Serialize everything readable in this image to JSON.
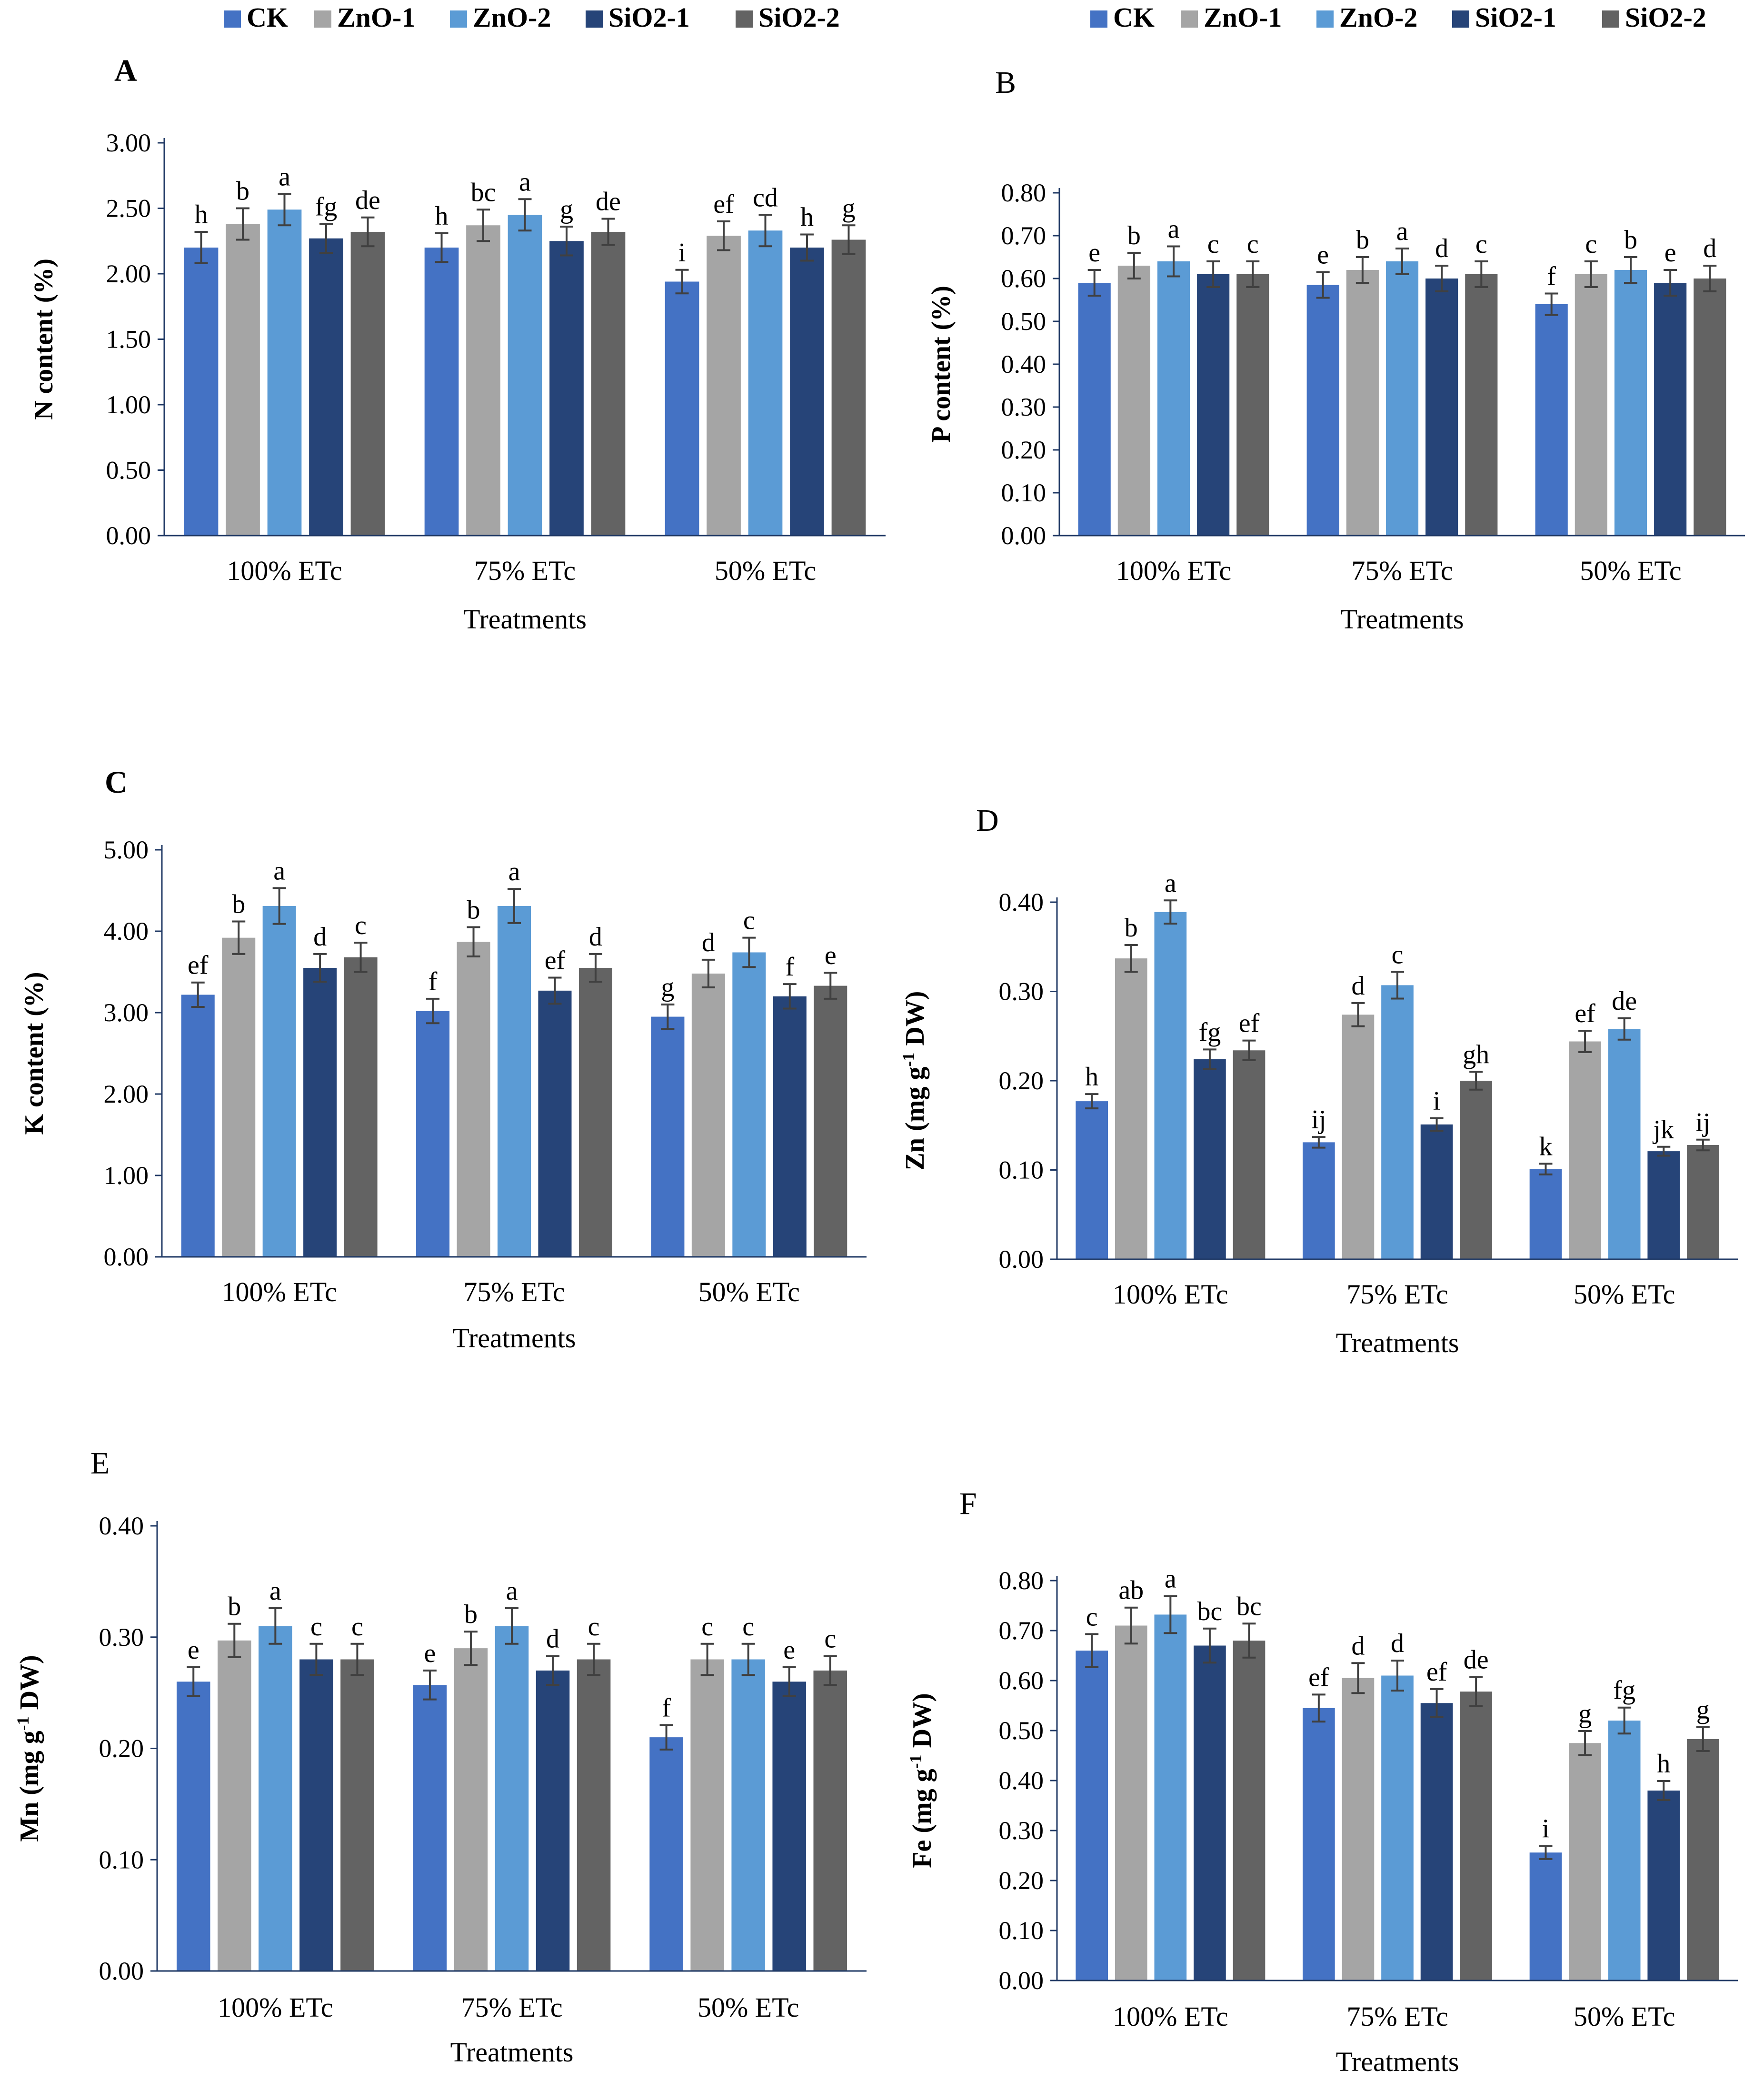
{
  "colors": {
    "CK": "#4472c4",
    "ZnO-1": "#a5a5a5",
    "ZnO-2": "#5b9bd5",
    "SiO2-1": "#264478",
    "SiO2-2": "#636363",
    "error_bar": "#404040",
    "axis": "#1f3864"
  },
  "legends": [
    {
      "items": [
        "CK",
        "ZnO-1",
        "ZnO-2",
        "SiO2-1",
        "SiO2-2"
      ]
    },
    {
      "items": [
        "CK",
        "ZnO-1",
        "ZnO-2",
        "SiO2-1",
        "SiO2-2"
      ]
    }
  ],
  "chart_data": [
    {
      "panel": "A",
      "type": "bar",
      "ylabel": "N content  (%)",
      "xlabel": "Treatments",
      "categories": [
        "100% ETc",
        "75% ETc",
        "50% ETc"
      ],
      "ylim": [
        0,
        3
      ],
      "yticks": [
        "0.00",
        "0.50",
        "1.00",
        "1.50",
        "2.00",
        "2.50",
        "3.00"
      ],
      "series": [
        {
          "name": "CK",
          "values": [
            2.2,
            2.2,
            1.94
          ],
          "errors": [
            0.12,
            0.11,
            0.09
          ],
          "letters": [
            "h",
            "h",
            "i"
          ]
        },
        {
          "name": "ZnO-1",
          "values": [
            2.38,
            2.37,
            2.29
          ],
          "errors": [
            0.12,
            0.12,
            0.11
          ],
          "letters": [
            "b",
            "bc",
            "ef"
          ]
        },
        {
          "name": "ZnO-2",
          "values": [
            2.49,
            2.45,
            2.33
          ],
          "errors": [
            0.12,
            0.12,
            0.12
          ],
          "letters": [
            "a",
            "a",
            "cd"
          ]
        },
        {
          "name": "SiO2-1",
          "values": [
            2.27,
            2.25,
            2.2
          ],
          "errors": [
            0.11,
            0.11,
            0.1
          ],
          "letters": [
            "fg",
            "g",
            "h"
          ]
        },
        {
          "name": "SiO2-2",
          "values": [
            2.32,
            2.32,
            2.26
          ],
          "errors": [
            0.11,
            0.1,
            0.11
          ],
          "letters": [
            "de",
            "de",
            "g"
          ]
        }
      ]
    },
    {
      "panel": "B",
      "type": "bar",
      "ylabel": "P content  (%)",
      "xlabel": "Treatments",
      "categories": [
        "100% ETc",
        "75% ETc",
        "50% ETc"
      ],
      "ylim": [
        0,
        0.8
      ],
      "yticks": [
        "0.00",
        "0.10",
        "0.20",
        "0.30",
        "0.40",
        "0.50",
        "0.60",
        "0.70",
        "0.80"
      ],
      "series": [
        {
          "name": "CK",
          "values": [
            0.59,
            0.585,
            0.54
          ],
          "errors": [
            0.03,
            0.03,
            0.025
          ],
          "letters": [
            "e",
            "e",
            "f"
          ]
        },
        {
          "name": "ZnO-1",
          "values": [
            0.63,
            0.62,
            0.61
          ],
          "errors": [
            0.03,
            0.03,
            0.03
          ],
          "letters": [
            "b",
            "b",
            "c"
          ]
        },
        {
          "name": "ZnO-2",
          "values": [
            0.64,
            0.64,
            0.62
          ],
          "errors": [
            0.035,
            0.03,
            0.03
          ],
          "letters": [
            "a",
            "a",
            "b"
          ]
        },
        {
          "name": "SiO2-1",
          "values": [
            0.61,
            0.6,
            0.59
          ],
          "errors": [
            0.03,
            0.03,
            0.03
          ],
          "letters": [
            "c",
            "d",
            "e"
          ]
        },
        {
          "name": "SiO2-2",
          "values": [
            0.61,
            0.61,
            0.6
          ],
          "errors": [
            0.03,
            0.03,
            0.03
          ],
          "letters": [
            "c",
            "c",
            "d"
          ]
        }
      ]
    },
    {
      "panel": "C",
      "type": "bar",
      "ylabel": "K content  (%)",
      "xlabel": "Treatments",
      "categories": [
        "100% ETc",
        "75% ETc",
        "50% ETc"
      ],
      "ylim": [
        0,
        5
      ],
      "yticks": [
        "0.00",
        "1.00",
        "2.00",
        "3.00",
        "4.00",
        "5.00"
      ],
      "series": [
        {
          "name": "CK",
          "values": [
            3.22,
            3.02,
            2.95
          ],
          "errors": [
            0.15,
            0.15,
            0.15
          ],
          "letters": [
            "ef",
            "f",
            "g"
          ]
        },
        {
          "name": "ZnO-1",
          "values": [
            3.92,
            3.87,
            3.48
          ],
          "errors": [
            0.2,
            0.18,
            0.17
          ],
          "letters": [
            "b",
            "b",
            "d"
          ]
        },
        {
          "name": "ZnO-2",
          "values": [
            4.31,
            4.31,
            3.74
          ],
          "errors": [
            0.22,
            0.21,
            0.18
          ],
          "letters": [
            "a",
            "a",
            "c"
          ]
        },
        {
          "name": "SiO2-1",
          "values": [
            3.55,
            3.27,
            3.2
          ],
          "errors": [
            0.17,
            0.16,
            0.15
          ],
          "letters": [
            "d",
            "ef",
            "f"
          ]
        },
        {
          "name": "SiO2-2",
          "values": [
            3.68,
            3.55,
            3.33
          ],
          "errors": [
            0.18,
            0.17,
            0.16
          ],
          "letters": [
            "c",
            "d",
            "e"
          ]
        }
      ]
    },
    {
      "panel": "D",
      "type": "bar",
      "ylabel": "Zn (mg g-1 DW)",
      "xlabel": "Treatments",
      "categories": [
        "100% ETc",
        "75% ETc",
        "50% ETc"
      ],
      "ylim": [
        0,
        0.4
      ],
      "yticks": [
        "0.00",
        "0.10",
        "0.20",
        "0.30",
        "0.40"
      ],
      "series": [
        {
          "name": "CK",
          "values": [
            0.177,
            0.131,
            0.101
          ],
          "errors": [
            0.008,
            0.006,
            0.006
          ],
          "letters": [
            "h",
            "ij",
            "k"
          ]
        },
        {
          "name": "ZnO-1",
          "values": [
            0.337,
            0.274,
            0.244
          ],
          "errors": [
            0.015,
            0.013,
            0.012
          ],
          "letters": [
            "b",
            "d",
            "ef"
          ]
        },
        {
          "name": "ZnO-2",
          "values": [
            0.389,
            0.307,
            0.258
          ],
          "errors": [
            0.013,
            0.015,
            0.012
          ],
          "letters": [
            "a",
            "c",
            "de"
          ]
        },
        {
          "name": "SiO2-1",
          "values": [
            0.224,
            0.151,
            0.121
          ],
          "errors": [
            0.011,
            0.007,
            0.005
          ],
          "letters": [
            "fg",
            "i",
            "jk"
          ]
        },
        {
          "name": "SiO2-2",
          "values": [
            0.234,
            0.2,
            0.128
          ],
          "errors": [
            0.011,
            0.01,
            0.006
          ],
          "letters": [
            "ef",
            "gh",
            "ij"
          ]
        }
      ]
    },
    {
      "panel": "E",
      "type": "bar",
      "ylabel": "Mn (mg g-1 DW)",
      "xlabel": "Treatments",
      "categories": [
        "100% ETc",
        "75% ETc",
        "50% ETc"
      ],
      "ylim": [
        0,
        0.4
      ],
      "yticks": [
        "0.00",
        "0.10",
        "0.20",
        "0.30",
        "0.40"
      ],
      "series": [
        {
          "name": "CK",
          "values": [
            0.26,
            0.257,
            0.21
          ],
          "errors": [
            0.013,
            0.013,
            0.011
          ],
          "letters": [
            "e",
            "e",
            "f"
          ]
        },
        {
          "name": "ZnO-1",
          "values": [
            0.297,
            0.29,
            0.28
          ],
          "errors": [
            0.015,
            0.015,
            0.014
          ],
          "letters": [
            "b",
            "b",
            "c"
          ]
        },
        {
          "name": "ZnO-2",
          "values": [
            0.31,
            0.31,
            0.28
          ],
          "errors": [
            0.016,
            0.016,
            0.014
          ],
          "letters": [
            "a",
            "a",
            "c"
          ]
        },
        {
          "name": "SiO2-1",
          "values": [
            0.28,
            0.27,
            0.26
          ],
          "errors": [
            0.014,
            0.013,
            0.013
          ],
          "letters": [
            "c",
            "d",
            "e"
          ]
        },
        {
          "name": "SiO2-2",
          "values": [
            0.28,
            0.28,
            0.27
          ],
          "errors": [
            0.014,
            0.014,
            0.013
          ],
          "letters": [
            "c",
            "c",
            "c"
          ]
        }
      ]
    },
    {
      "panel": "F",
      "type": "bar",
      "ylabel": "Fe (mg g-1 DW)",
      "xlabel": "Treatments",
      "categories": [
        "100% ETc",
        "75% ETc",
        "50% ETc"
      ],
      "ylim": [
        0,
        0.8
      ],
      "yticks": [
        "0.00",
        "0.10",
        "0.20",
        "0.30",
        "0.40",
        "0.50",
        "0.60",
        "0.70",
        "0.80"
      ],
      "series": [
        {
          "name": "CK",
          "values": [
            0.66,
            0.545,
            0.256
          ],
          "errors": [
            0.033,
            0.027,
            0.013
          ],
          "letters": [
            "c",
            "ef",
            "i"
          ]
        },
        {
          "name": "ZnO-1",
          "values": [
            0.71,
            0.605,
            0.475
          ],
          "errors": [
            0.036,
            0.03,
            0.024
          ],
          "letters": [
            "ab",
            "d",
            "g"
          ]
        },
        {
          "name": "ZnO-2",
          "values": [
            0.732,
            0.61,
            0.52
          ],
          "errors": [
            0.037,
            0.03,
            0.026
          ],
          "letters": [
            "a",
            "d",
            "fg"
          ]
        },
        {
          "name": "SiO2-1",
          "values": [
            0.67,
            0.555,
            0.38
          ],
          "errors": [
            0.034,
            0.028,
            0.019
          ],
          "letters": [
            "bc",
            "ef",
            "h"
          ]
        },
        {
          "name": "SiO2-2",
          "values": [
            0.68,
            0.578,
            0.483
          ],
          "errors": [
            0.034,
            0.029,
            0.024
          ],
          "letters": [
            "bc",
            "de",
            "g"
          ]
        }
      ]
    }
  ]
}
